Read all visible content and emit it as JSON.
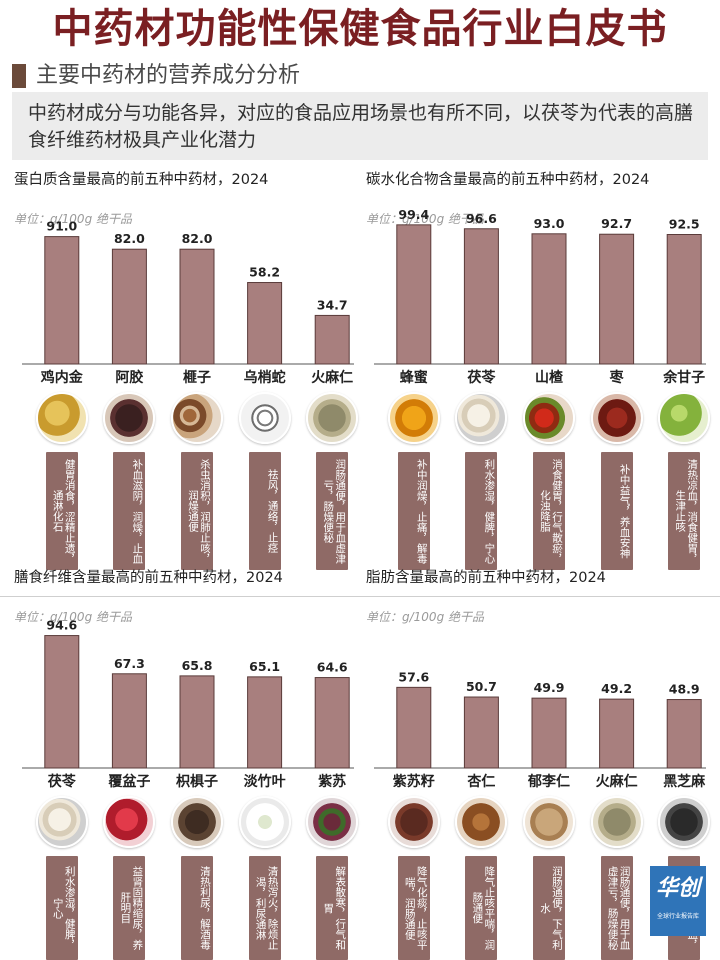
{
  "header": {
    "title": "中药材功能性保健食品行业白皮书",
    "subtitle": "主要中药材的营养成分分析",
    "summary": "中药材成分与功能各异，对应的食品应用场景也有所不同，以茯苓为代表的高膳食纤维药材极具产业化潜力"
  },
  "colors": {
    "title": "#7a1f22",
    "bar": "#a87f7e",
    "bar_stroke": "#5a3b3a",
    "tag": "#8f6a66",
    "summary_bg": "#ececec"
  },
  "chart_data": [
    {
      "type": "bar",
      "title": "蛋白质含量最高的前五种中药材，2024",
      "unit": "单位：g/100g 绝干品",
      "categories": [
        "鸡内金",
        "阿胶",
        "榧子",
        "乌梢蛇",
        "火麻仁"
      ],
      "values": [
        91.0,
        82.0,
        82.0,
        58.2,
        34.7
      ],
      "ylim": [
        0,
        100
      ],
      "functions": [
        "健胃消食，涩精止遗，通淋化石",
        "补血滋阴，润燥，止血",
        "杀虫消积，润肺止咳，润燥通便",
        "祛风，通络，止痉",
        "润肠通便，用于血虚津亏，肠燥便秘"
      ],
      "images": [
        "chicken-gizzard",
        "donkey-gelatin",
        "torreya-nuts",
        "snake",
        "hemp-seeds"
      ]
    },
    {
      "type": "bar",
      "title": "碳水化合物含量最高的前五种中药材，2024",
      "unit": "单位：g/100g 绝干品",
      "categories": [
        "蜂蜜",
        "茯苓",
        "山楂",
        "枣",
        "余甘子"
      ],
      "values": [
        99.4,
        96.6,
        93.0,
        92.7,
        92.5
      ],
      "ylim": [
        0,
        100
      ],
      "functions": [
        "补中润燥，止痛，解毒",
        "利水渗湿，健脾，宁心",
        "消食健胃，行气散瘀，化浊降脂",
        "补中益气，养血安神",
        "清热凉血，消食健胃，生津止咳"
      ],
      "images": [
        "honeycomb",
        "poria",
        "hawthorn",
        "jujube",
        "emblic"
      ]
    },
    {
      "type": "bar",
      "title": "膳食纤维含量最高的前五种中药材，2024",
      "unit": "单位：g/100g 绝干品",
      "categories": [
        "茯苓",
        "覆盆子",
        "枳椇子",
        "淡竹叶",
        "紫苏"
      ],
      "values": [
        94.6,
        67.3,
        65.8,
        65.1,
        64.6
      ],
      "ylim": [
        0,
        100
      ],
      "functions": [
        "利水渗湿，健脾，宁心",
        "益肾固精缩尿，养肝明目",
        "清热利尿，解酒毒",
        "清热泻火，除烦止渴，利尿通淋",
        "解表散寒，行气和胃"
      ],
      "images": [
        "poria",
        "raspberry",
        "hovenia",
        "bamboo-leaf",
        "perilla"
      ]
    },
    {
      "type": "bar",
      "title": "脂肪含量最高的前五种中药材，2024",
      "unit": "单位：g/100g 绝干品",
      "categories": [
        "紫苏籽",
        "杏仁",
        "郁李仁",
        "火麻仁",
        "黑芝麻"
      ],
      "values": [
        57.6,
        50.7,
        49.9,
        49.2,
        48.9
      ],
      "ylim": [
        0,
        100
      ],
      "functions": [
        "降气化痰，止咳平喘，润肠通便",
        "降气止咳平喘，润肠通便",
        "润肠通便，下气利水",
        "润肠通便，用于血虚津亏，肠燥便秘",
        "补肝肾，益精血，润肠燥"
      ],
      "images": [
        "perilla-seed",
        "almond",
        "bush-cherry-seed",
        "hemp-seeds",
        "black-sesame"
      ]
    }
  ],
  "logo": {
    "line1": "华创",
    "line2": "全球行业报告库"
  }
}
